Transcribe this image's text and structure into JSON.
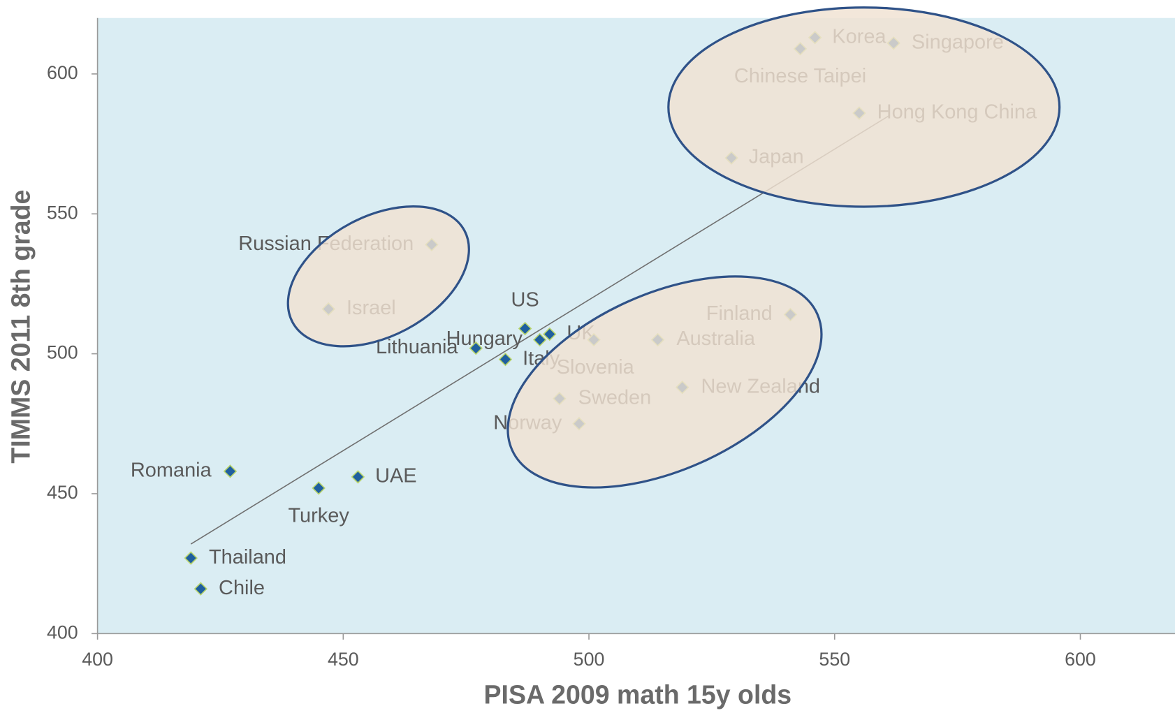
{
  "chart_data": {
    "type": "scatter",
    "x_label": "PISA 2009 math 15y olds",
    "y_label": "TIMMS 2011 8th grade",
    "xlim": [
      400,
      620
    ],
    "ylim": [
      400,
      620
    ],
    "xticks": [
      400,
      450,
      500,
      550,
      600
    ],
    "yticks": [
      400,
      450,
      500,
      550,
      600
    ],
    "color": "#1f5f9f",
    "labels": [
      "Korea",
      "Chinese Taipei",
      "Singapore",
      "Hong Kong China",
      "Japan",
      "Russian Federation",
      "Israel",
      "US",
      "UK",
      "Hungary",
      "Lithuania",
      "Italy",
      "Slovenia",
      "Australia",
      "Finland",
      "New Zealand",
      "Sweden",
      "Norway",
      "Romania",
      "UAE",
      "Turkey",
      "Thailand",
      "Chile"
    ],
    "x": [
      546,
      543,
      562,
      555,
      529,
      468,
      447,
      487,
      492,
      490,
      477,
      483,
      501,
      514,
      541,
      519,
      494,
      498,
      427,
      453,
      445,
      419,
      421
    ],
    "y": [
      613,
      609,
      611,
      586,
      570,
      539,
      516,
      509,
      507,
      505,
      502,
      498,
      505,
      505,
      514,
      488,
      484,
      475,
      458,
      456,
      452,
      427,
      416
    ],
    "trendline": {
      "x": [
        419,
        561
      ],
      "y": [
        432,
        585
      ]
    }
  }
}
